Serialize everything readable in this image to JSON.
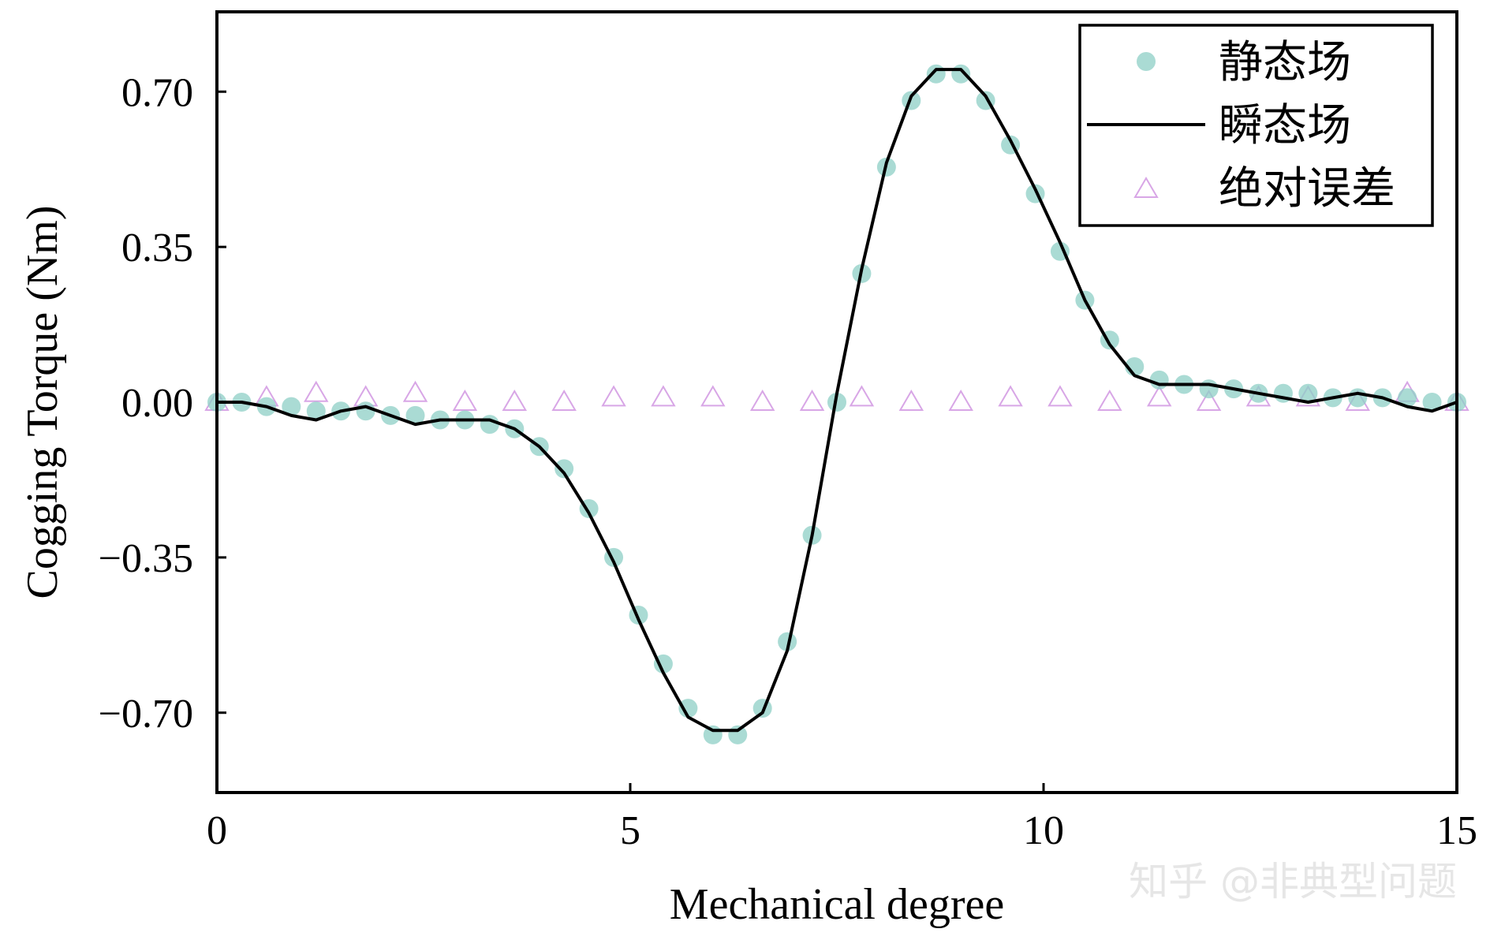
{
  "chart_data": {
    "type": "line",
    "title": "",
    "xlabel": "Mechanical degree",
    "ylabel": "Cogging Torque (Nm)",
    "xlim": [
      0,
      15
    ],
    "ylim": [
      -0.88,
      0.88
    ],
    "x_ticks": [
      0,
      5,
      10,
      15
    ],
    "x_tick_labels": [
      "0",
      "5",
      "10",
      "15"
    ],
    "y_ticks": [
      0.7,
      0.35,
      0.0,
      -0.35,
      -0.7
    ],
    "y_tick_labels": [
      "0.70",
      "0.35",
      "0.00",
      "−0.35",
      "−0.70"
    ],
    "grid": false,
    "legend_position": "top-right",
    "series": [
      {
        "name": "静态场",
        "marker": "circle",
        "color": "#8ecfc6",
        "x": [
          0,
          0.3,
          0.6,
          0.9,
          1.2,
          1.5,
          1.8,
          2.1,
          2.4,
          2.7,
          3.0,
          3.3,
          3.6,
          3.9,
          4.2,
          4.5,
          4.8,
          5.1,
          5.4,
          5.7,
          6.0,
          6.3,
          6.6,
          6.9,
          7.2,
          7.5,
          7.8,
          8.1,
          8.4,
          8.7,
          9.0,
          9.3,
          9.6,
          9.9,
          10.2,
          10.5,
          10.8,
          11.1,
          11.4,
          11.7,
          12.0,
          12.3,
          12.6,
          12.9,
          13.2,
          13.5,
          13.8,
          14.1,
          14.4,
          14.7,
          15.0
        ],
        "y": [
          0.0,
          0.0,
          -0.01,
          -0.01,
          -0.02,
          -0.02,
          -0.02,
          -0.03,
          -0.03,
          -0.04,
          -0.04,
          -0.05,
          -0.06,
          -0.1,
          -0.15,
          -0.24,
          -0.35,
          -0.48,
          -0.59,
          -0.69,
          -0.75,
          -0.75,
          -0.69,
          -0.54,
          -0.3,
          0.0,
          0.29,
          0.53,
          0.68,
          0.74,
          0.74,
          0.68,
          0.58,
          0.47,
          0.34,
          0.23,
          0.14,
          0.08,
          0.05,
          0.04,
          0.03,
          0.03,
          0.02,
          0.02,
          0.02,
          0.01,
          0.01,
          0.01,
          0.01,
          0.0,
          0.0
        ]
      },
      {
        "name": "瞬态场",
        "marker": "line",
        "color": "#000000",
        "x": [
          0,
          0.3,
          0.6,
          0.9,
          1.2,
          1.5,
          1.8,
          2.1,
          2.4,
          2.7,
          3.0,
          3.3,
          3.6,
          3.9,
          4.2,
          4.5,
          4.8,
          5.1,
          5.4,
          5.7,
          6.0,
          6.3,
          6.6,
          6.9,
          7.2,
          7.5,
          7.8,
          8.1,
          8.4,
          8.7,
          9.0,
          9.3,
          9.6,
          9.9,
          10.2,
          10.5,
          10.8,
          11.1,
          11.4,
          11.7,
          12.0,
          12.3,
          12.6,
          12.9,
          13.2,
          13.5,
          13.8,
          14.1,
          14.4,
          14.7,
          15.0
        ],
        "y": [
          0.0,
          0.0,
          -0.01,
          -0.03,
          -0.04,
          -0.02,
          -0.01,
          -0.03,
          -0.05,
          -0.04,
          -0.04,
          -0.04,
          -0.06,
          -0.1,
          -0.16,
          -0.25,
          -0.36,
          -0.49,
          -0.61,
          -0.71,
          -0.74,
          -0.74,
          -0.7,
          -0.56,
          -0.3,
          0.02,
          0.3,
          0.54,
          0.69,
          0.75,
          0.75,
          0.69,
          0.59,
          0.48,
          0.36,
          0.23,
          0.13,
          0.06,
          0.04,
          0.04,
          0.04,
          0.03,
          0.02,
          0.01,
          0.0,
          0.01,
          0.02,
          0.01,
          -0.01,
          -0.02,
          0.0
        ]
      },
      {
        "name": "绝对误差",
        "marker": "triangle",
        "color": "#d8a6e6",
        "x": [
          0,
          0.6,
          1.2,
          1.8,
          2.4,
          3.0,
          3.6,
          4.2,
          4.8,
          5.4,
          6.0,
          6.6,
          7.2,
          7.8,
          8.4,
          9.0,
          9.6,
          10.2,
          10.8,
          11.4,
          12.0,
          12.6,
          13.2,
          13.8,
          14.4,
          15.0
        ],
        "y": [
          0.0,
          0.01,
          0.02,
          0.01,
          0.02,
          0.0,
          0.0,
          0.0,
          0.01,
          0.01,
          0.01,
          0.0,
          0.0,
          0.01,
          0.0,
          0.0,
          0.01,
          0.01,
          0.0,
          0.01,
          0.0,
          0.01,
          0.01,
          0.0,
          0.02,
          0.0
        ]
      }
    ]
  },
  "watermark": "知乎 @非典型问题"
}
